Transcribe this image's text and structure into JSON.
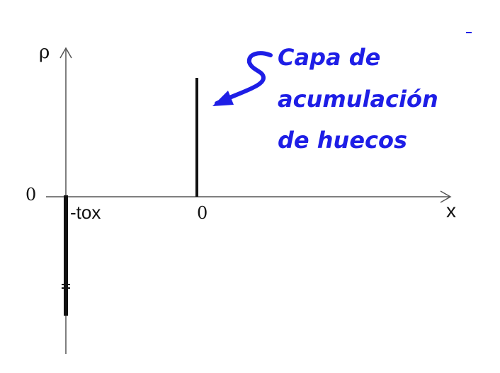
{
  "axes": {
    "y_label": "ρ",
    "x_label": "x",
    "y_origin_label": "0",
    "x_origin_label": "0",
    "oxide_label": "-tox"
  },
  "annotation": {
    "lines": [
      "Capa de",
      "acumulación",
      "de huecos"
    ],
    "color": "#1e1ee6"
  },
  "colors": {
    "axis": "#555555",
    "charge": "#111111"
  }
}
